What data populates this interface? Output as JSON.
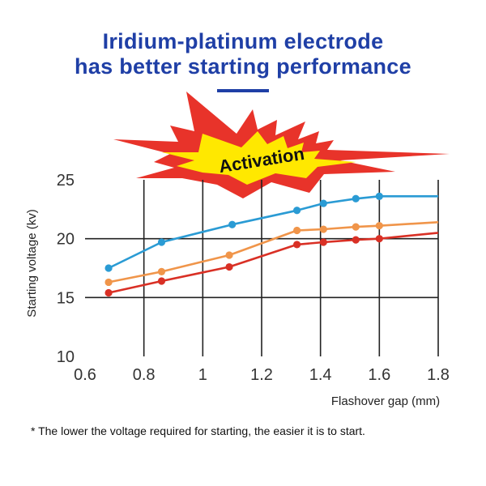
{
  "header": {
    "title_line1": "Iridium-platinum electrode",
    "title_line2": "has better starting performance"
  },
  "badge": {
    "text": "Activation",
    "colors": {
      "burst_outer": "#e8332a",
      "burst_inner": "#ffe800"
    }
  },
  "footnote": "* The lower the voltage required for starting, the easier it is to start.",
  "colors": {
    "title": "#1f3fa6",
    "series_blue": "#2a9bd4",
    "series_orange": "#f0954a",
    "series_red": "#d93025",
    "grid": "#222222"
  },
  "chart_data": {
    "type": "line",
    "xlabel": "Flashover gap (mm)",
    "ylabel": "Starting voltage (kv)",
    "xlim": [
      0.6,
      1.8
    ],
    "ylim": [
      10,
      25
    ],
    "xticks": [
      "0.6",
      "0.8",
      "1",
      "1.2",
      "1.4",
      "1.6",
      "1.8"
    ],
    "yticks": [
      "10",
      "15",
      "20",
      "25"
    ],
    "grid": true,
    "series": [
      {
        "color": "#2a9bd4",
        "points": [
          [
            0.68,
            17.5
          ],
          [
            0.86,
            19.7
          ],
          [
            1.1,
            21.2
          ],
          [
            1.32,
            22.4
          ],
          [
            1.41,
            23.0
          ],
          [
            1.52,
            23.4
          ],
          [
            1.6,
            23.6
          ]
        ],
        "line_end": [
          1.8,
          23.6
        ]
      },
      {
        "color": "#f0954a",
        "points": [
          [
            0.68,
            16.3
          ],
          [
            0.86,
            17.2
          ],
          [
            1.09,
            18.6
          ],
          [
            1.32,
            20.7
          ],
          [
            1.41,
            20.8
          ],
          [
            1.52,
            21.0
          ],
          [
            1.6,
            21.1
          ]
        ],
        "line_end": [
          1.8,
          21.4
        ]
      },
      {
        "color": "#d93025",
        "points": [
          [
            0.68,
            15.4
          ],
          [
            0.86,
            16.4
          ],
          [
            1.09,
            17.6
          ],
          [
            1.32,
            19.5
          ],
          [
            1.41,
            19.7
          ],
          [
            1.52,
            19.9
          ],
          [
            1.6,
            20.0
          ]
        ],
        "line_end": [
          1.8,
          20.5
        ]
      }
    ]
  }
}
